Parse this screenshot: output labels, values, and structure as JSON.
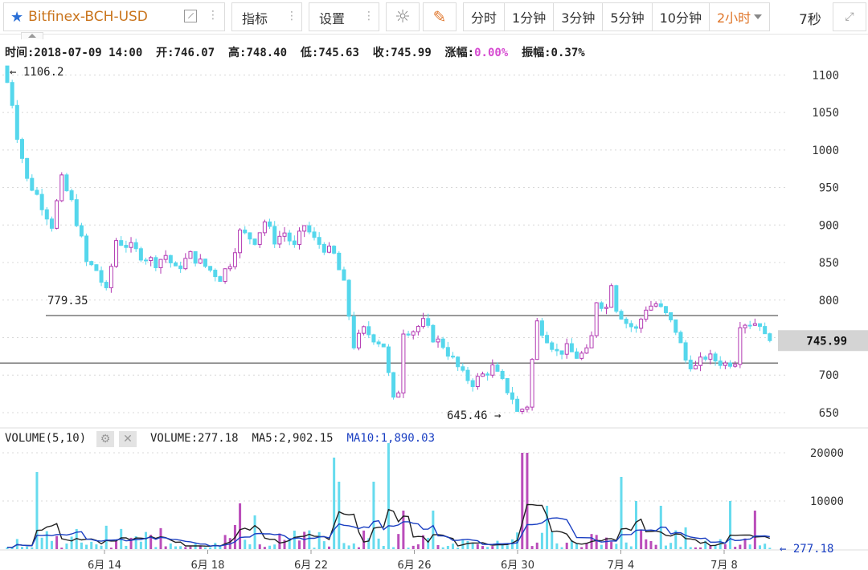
{
  "toolbar": {
    "symbol": "Bitfinex-BCH-USD",
    "indicators_label": "指标",
    "settings_label": "设置",
    "periods": [
      "分时",
      "1分钟",
      "3分钟",
      "5分钟",
      "10分钟",
      "2小时"
    ],
    "active_period": "2小时",
    "refresh_label": "7秒"
  },
  "ohlc_info": {
    "time": "时间:2018-07-09 14:00",
    "open": "开:746.07",
    "high": "高:748.40",
    "low": "低:745.63",
    "close": "收:745.99",
    "change_label": "涨幅:",
    "change_value": "0.00%",
    "amplitude": "振幅:0.37%"
  },
  "volume_info": {
    "title": "VOLUME(5,10)",
    "volume": "VOLUME:277.18",
    "ma5": "MA5:2,902.15",
    "ma10": "MA10:1,890.03"
  },
  "colors": {
    "up": "#b33ab3",
    "down": "#55d7ec",
    "ma5": "#222222",
    "ma10": "#1a3fc2",
    "accent": "#e0762a",
    "price_tag_bg": "#d4d4d4"
  },
  "chart_data": [
    {
      "type": "candlestick",
      "y_axis_ticks": [
        650,
        700,
        750,
        800,
        850,
        900,
        950,
        1000,
        1050,
        1100
      ],
      "ylim": [
        635,
        1110
      ],
      "x_tick_labels": [
        "6月 14",
        "6月 18",
        "6月 22",
        "6月 26",
        "6月 30",
        "7月 4",
        "7月 8"
      ],
      "last_price": "745.99",
      "max_label": "← 1106.2",
      "min_label": "645.46 →",
      "horizontal_lines": [
        {
          "value": 779.35,
          "label": "779.35"
        },
        {
          "value": 716
        }
      ],
      "close_path": [
        [
          0,
          1106
        ],
        [
          2,
          1020
        ],
        [
          4,
          960
        ],
        [
          6,
          940
        ],
        [
          9,
          900
        ],
        [
          11,
          960
        ],
        [
          13,
          930
        ],
        [
          15,
          880
        ],
        [
          16,
          850
        ],
        [
          18,
          840
        ],
        [
          20,
          810
        ],
        [
          22,
          880
        ],
        [
          25,
          870
        ],
        [
          27,
          860
        ],
        [
          30,
          850
        ],
        [
          32,
          860
        ],
        [
          34,
          840
        ],
        [
          37,
          860
        ],
        [
          39,
          850
        ],
        [
          41,
          840
        ],
        [
          43,
          830
        ],
        [
          45,
          850
        ],
        [
          47,
          890
        ],
        [
          50,
          880
        ],
        [
          52,
          905
        ],
        [
          54,
          880
        ],
        [
          56,
          890
        ],
        [
          58,
          870
        ],
        [
          60,
          900
        ],
        [
          62,
          880
        ],
        [
          64,
          870
        ],
        [
          66,
          860
        ],
        [
          68,
          820
        ],
        [
          69,
          780
        ],
        [
          70,
          740
        ],
        [
          72,
          760
        ],
        [
          74,
          750
        ],
        [
          76,
          740
        ],
        [
          77,
          700
        ],
        [
          78,
          665
        ],
        [
          79,
          680
        ],
        [
          80,
          760
        ],
        [
          82,
          760
        ],
        [
          84,
          770
        ],
        [
          86,
          750
        ],
        [
          88,
          740
        ],
        [
          90,
          720
        ],
        [
          92,
          700
        ],
        [
          94,
          690
        ],
        [
          96,
          700
        ],
        [
          98,
          710
        ],
        [
          100,
          690
        ],
        [
          102,
          670
        ],
        [
          103,
          650
        ],
        [
          105,
          660
        ],
        [
          106,
          720
        ],
        [
          107,
          770
        ],
        [
          109,
          750
        ],
        [
          111,
          730
        ],
        [
          113,
          735
        ],
        [
          115,
          725
        ],
        [
          117,
          730
        ],
        [
          118,
          750
        ],
        [
          119,
          800
        ],
        [
          121,
          790
        ],
        [
          122,
          825
        ],
        [
          123,
          790
        ],
        [
          125,
          770
        ],
        [
          127,
          760
        ],
        [
          129,
          790
        ],
        [
          131,
          795
        ],
        [
          133,
          780
        ],
        [
          135,
          760
        ],
        [
          137,
          720
        ],
        [
          139,
          710
        ],
        [
          141,
          725
        ],
        [
          143,
          720
        ],
        [
          145,
          715
        ],
        [
          147,
          720
        ],
        [
          148,
          770
        ],
        [
          150,
          770
        ],
        [
          152,
          770
        ],
        [
          153,
          750
        ],
        [
          154,
          745.99
        ]
      ]
    },
    {
      "type": "bar",
      "title": "VOLUME(5,10)",
      "y_axis_ticks": [
        10000,
        20000
      ],
      "ylim": [
        0,
        22000
      ],
      "last_value": "← 277.18",
      "spike_volumes": [
        [
          6,
          16000
        ],
        [
          46,
          5000
        ],
        [
          47,
          9500
        ],
        [
          50,
          7000
        ],
        [
          66,
          19000
        ],
        [
          67,
          14000
        ],
        [
          74,
          14000
        ],
        [
          77,
          22000
        ],
        [
          80,
          8000
        ],
        [
          86,
          8000
        ],
        [
          104,
          20000
        ],
        [
          105,
          20000
        ],
        [
          109,
          9000
        ],
        [
          124,
          15000
        ],
        [
          127,
          10000
        ],
        [
          132,
          9000
        ],
        [
          146,
          10000
        ],
        [
          151,
          8000
        ]
      ]
    }
  ]
}
